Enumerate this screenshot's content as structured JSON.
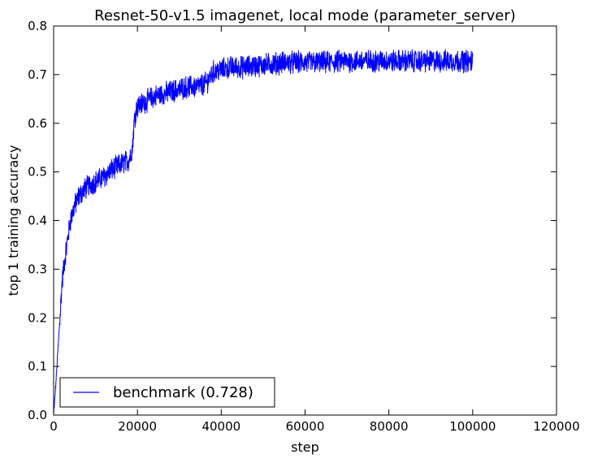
{
  "chart_data": {
    "type": "line",
    "title": "Resnet-50-v1.5 imagenet, local mode (parameter_server)",
    "xlabel": "step",
    "ylabel": "top 1 training accuracy",
    "xlim": [
      0,
      120000
    ],
    "ylim": [
      0.0,
      0.8
    ],
    "xticks": [
      "0",
      "20000",
      "40000",
      "60000",
      "80000",
      "100000",
      "120000"
    ],
    "yticks": [
      "0.0",
      "0.1",
      "0.2",
      "0.3",
      "0.4",
      "0.5",
      "0.6",
      "0.7",
      "0.8"
    ],
    "grid": false,
    "legend_position": "lower-left",
    "series": [
      {
        "name": "benchmark (0.728)",
        "color": "#0000ff",
        "x": [
          0,
          500,
          1000,
          1500,
          2000,
          2500,
          3000,
          3500,
          4000,
          5000,
          6000,
          7000,
          8000,
          10000,
          12000,
          14000,
          16000,
          18000,
          18800,
          19200,
          19600,
          20000,
          22000,
          24000,
          26000,
          28000,
          30000,
          32000,
          34000,
          36000,
          37000,
          38000,
          40000,
          42000,
          45000,
          50000,
          55000,
          60000,
          65000,
          70000,
          75000,
          80000,
          85000,
          90000,
          95000,
          100000
        ],
        "y": [
          0.0,
          0.06,
          0.13,
          0.2,
          0.27,
          0.31,
          0.34,
          0.37,
          0.4,
          0.43,
          0.45,
          0.46,
          0.47,
          0.48,
          0.49,
          0.505,
          0.515,
          0.525,
          0.55,
          0.6,
          0.625,
          0.635,
          0.645,
          0.655,
          0.66,
          0.665,
          0.67,
          0.675,
          0.675,
          0.68,
          0.69,
          0.705,
          0.71,
          0.715,
          0.715,
          0.72,
          0.725,
          0.725,
          0.725,
          0.728,
          0.728,
          0.728,
          0.728,
          0.728,
          0.728,
          0.728
        ],
        "noise_amplitude": 0.02
      }
    ]
  }
}
